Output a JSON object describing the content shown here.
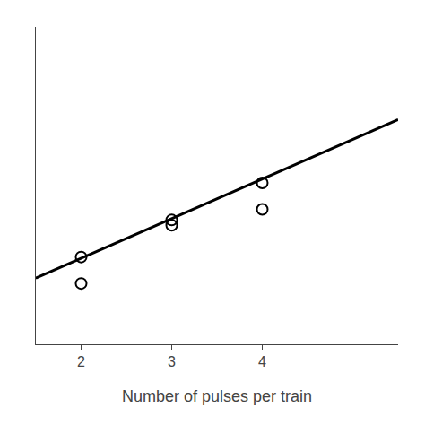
{
  "chart_data": {
    "type": "scatter",
    "xlabel": "Number of pulses per train",
    "series": [
      {
        "type": "scatter",
        "x": [
          2,
          2,
          3,
          3,
          4,
          4
        ],
        "values": [
          0.68,
          0.58,
          0.82,
          0.8,
          0.96,
          0.86
        ],
        "color": "#000000",
        "marker": "circle-open"
      },
      {
        "type": "line",
        "x": [
          1.5,
          5.5
        ],
        "values": [
          0.6,
          1.2
        ],
        "color": "#000000",
        "line_style": "solid"
      }
    ],
    "xlim": [
      1.5,
      5.5
    ],
    "xticks": [
      2,
      3,
      4
    ],
    "ylim": [
      0.35,
      1.55
    ],
    "yticks": [],
    "tick_labels": "x",
    "grid": false
  }
}
